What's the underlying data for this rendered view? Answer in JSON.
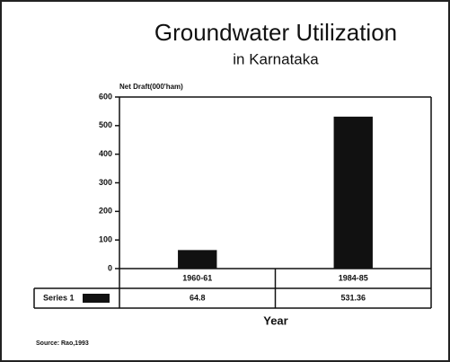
{
  "chart_data": {
    "type": "bar",
    "title": "Groundwater Utilization",
    "subtitle": "in Karnataka",
    "y_label": "Net Draft(000'ham)",
    "x_label": "Year",
    "source": "Source: Rao,1993",
    "categories": [
      "1960-61",
      "1984-85"
    ],
    "series": [
      {
        "name": "Series 1",
        "color": "#111111",
        "values": [
          64.8,
          531.36
        ]
      }
    ],
    "ylim": [
      0,
      600
    ],
    "yticks": [
      0,
      100,
      200,
      300,
      400,
      500,
      600
    ],
    "grid": false
  }
}
